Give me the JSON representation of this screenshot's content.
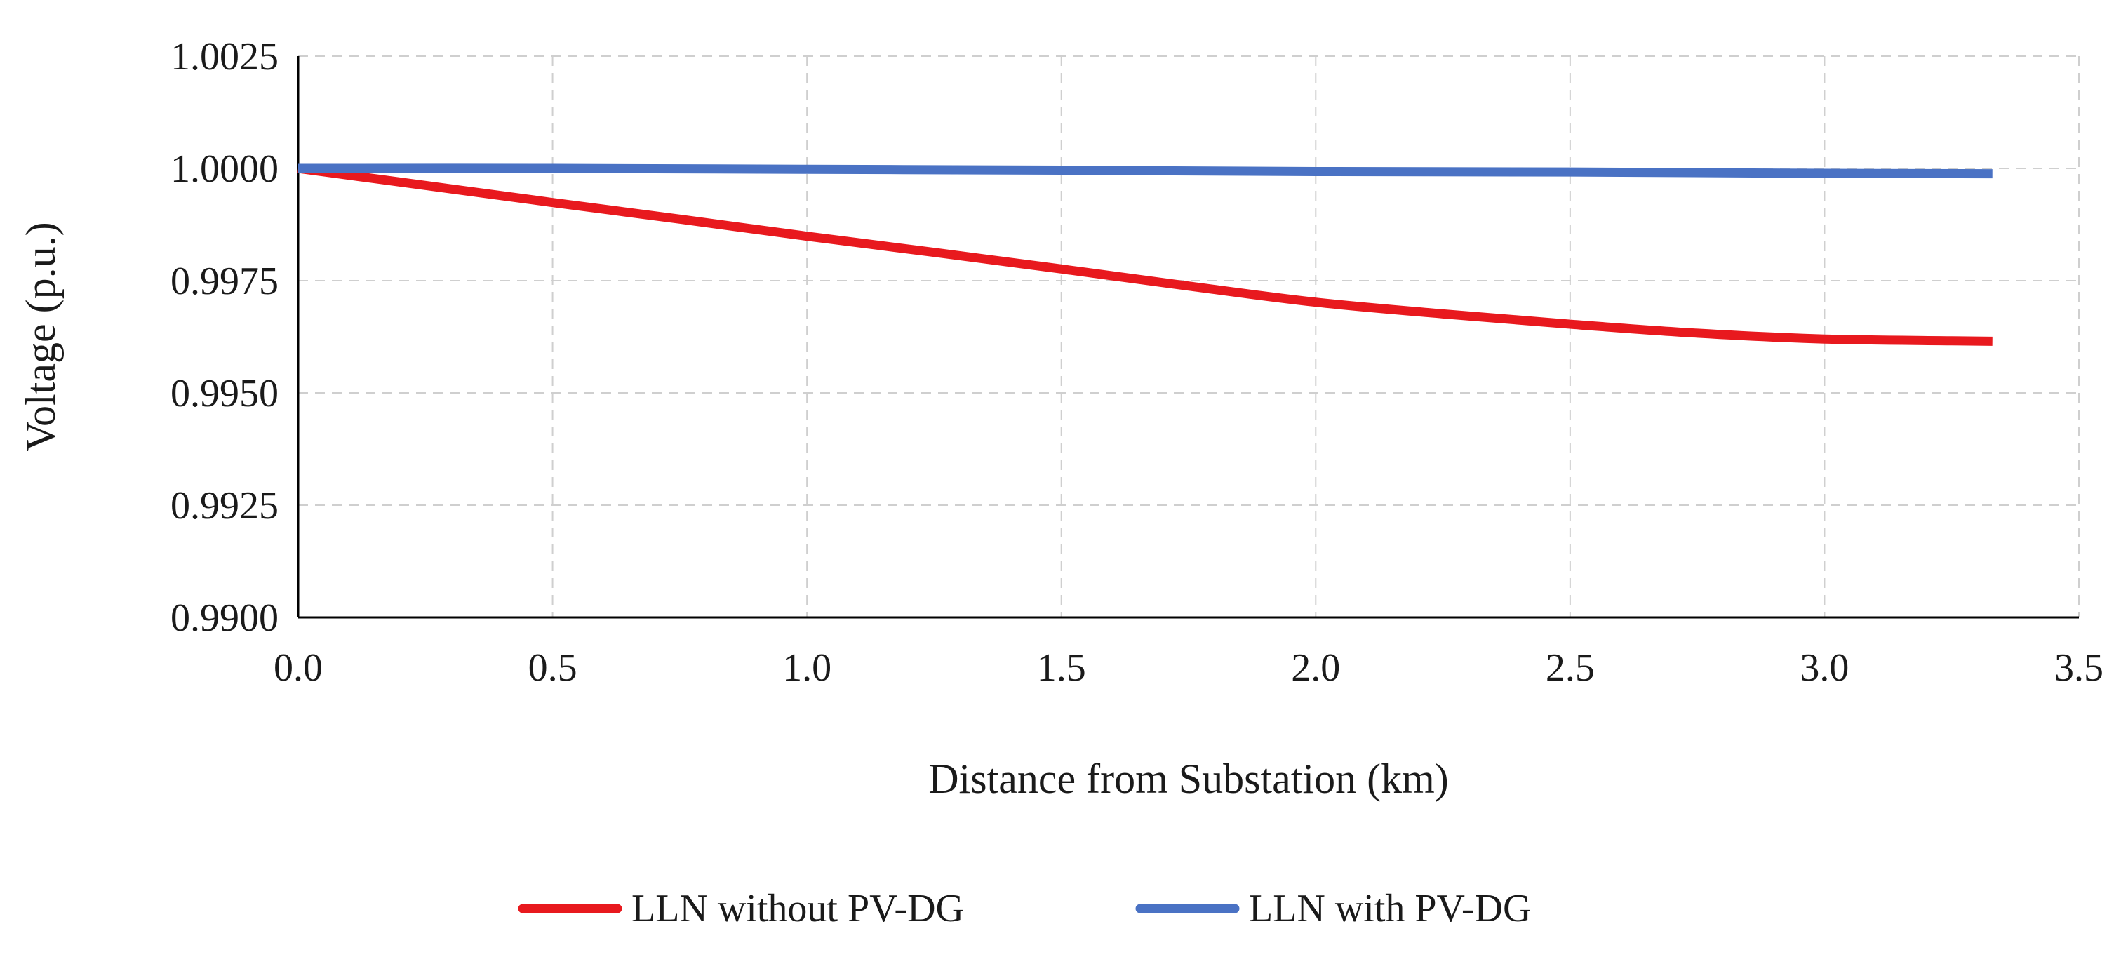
{
  "chart_data": {
    "type": "line",
    "title": "",
    "xlabel": "Distance from Substation (km)",
    "ylabel": "Voltage (p.u.)",
    "xlim": [
      0.0,
      3.5
    ],
    "ylim": [
      0.99,
      1.0025
    ],
    "xticks": [
      "0.0",
      "0.5",
      "1.0",
      "1.5",
      "2.0",
      "2.5",
      "3.0",
      "3.5"
    ],
    "xtick_values": [
      0.0,
      0.5,
      1.0,
      1.5,
      2.0,
      2.5,
      3.0,
      3.5
    ],
    "yticks": [
      "0.9900",
      "0.9925",
      "0.9950",
      "0.9975",
      "1.0000",
      "1.0025"
    ],
    "ytick_values": [
      0.99,
      0.9925,
      0.995,
      0.9975,
      1.0,
      1.0025
    ],
    "grid": true,
    "legend_position": "bottom",
    "series": [
      {
        "name": "LLN without PV-DG",
        "color": "#e8191e",
        "x": [
          0.0,
          0.25,
          0.5,
          0.75,
          1.0,
          1.25,
          1.5,
          1.75,
          2.0,
          2.25,
          2.5,
          2.75,
          3.0,
          3.25,
          3.33
        ],
        "y": [
          1.0,
          0.99962,
          0.99924,
          0.99887,
          0.99849,
          0.99813,
          0.99776,
          0.99738,
          0.99702,
          0.99676,
          0.99653,
          0.99633,
          0.9962,
          0.99616,
          0.99615
        ]
      },
      {
        "name": "LLN with PV-DG",
        "color": "#4a72c4",
        "x": [
          0.0,
          0.5,
          1.0,
          1.5,
          2.0,
          2.5,
          3.0,
          3.33
        ],
        "y": [
          1.0,
          1.0,
          0.99998,
          0.99996,
          0.99993,
          0.99992,
          0.99989,
          0.99988
        ]
      }
    ]
  }
}
